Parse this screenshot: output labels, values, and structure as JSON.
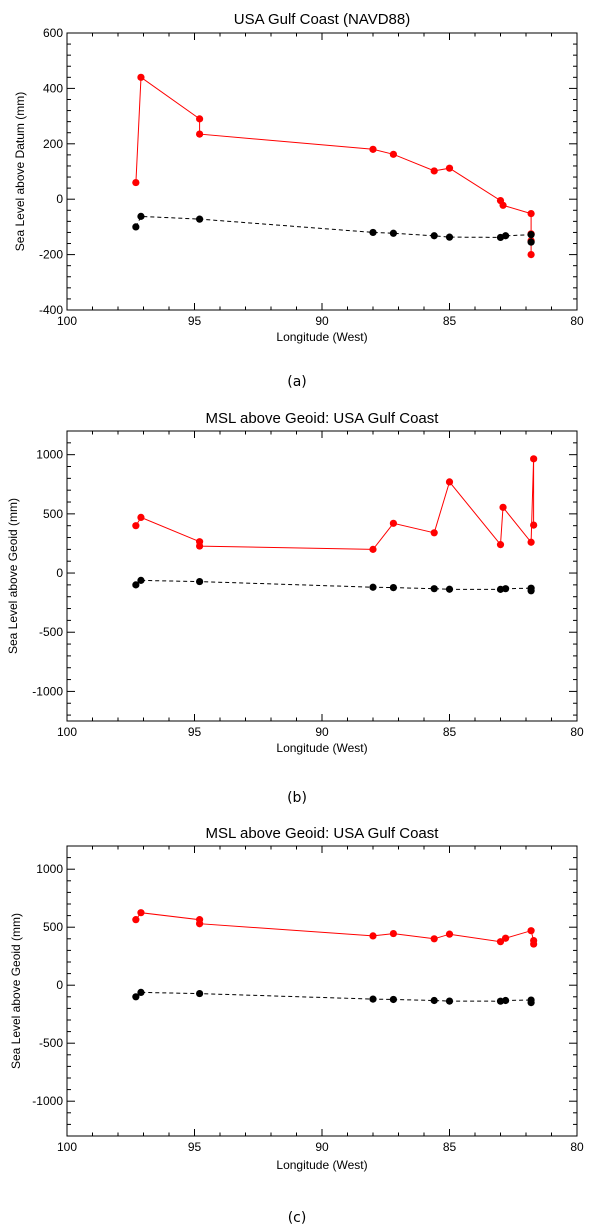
{
  "chart_data": [
    {
      "type": "line",
      "title": "USA Gulf Coast (NAVD88)",
      "xlabel": "Longitude (West)",
      "ylabel": "Sea Level above Datum (mm)",
      "caption": "(a)",
      "xlim": [
        100,
        80
      ],
      "ylim": [
        -400,
        600
      ],
      "xticks": [
        "100",
        "95",
        "90",
        "85",
        "80"
      ],
      "yticks": [
        "-400",
        "-200",
        "0",
        "200",
        "400",
        "600"
      ],
      "series": [
        {
          "color": "#ff0000",
          "style": "solid",
          "x": [
            97.3,
            97.1,
            94.8,
            94.8,
            88.0,
            87.2,
            85.6,
            85.0,
            83.0,
            82.9,
            81.8,
            81.8,
            81.8,
            81.8
          ],
          "y": [
            60,
            440,
            290,
            235,
            180,
            162,
            102,
            112,
            -5,
            -22,
            -52,
            -125,
            -200,
            -150
          ]
        },
        {
          "color": "#000000",
          "style": "dashed",
          "x": [
            97.3,
            97.1,
            94.8,
            88.0,
            87.2,
            85.6,
            85.0,
            83.0,
            82.8,
            81.8,
            81.8
          ],
          "y": [
            -100,
            -62,
            -72,
            -120,
            -123,
            -132,
            -137,
            -138,
            -132,
            -128,
            -155
          ]
        }
      ]
    },
    {
      "type": "line",
      "title": "MSL above Geoid: USA Gulf Coast",
      "xlabel": "Longitude (West)",
      "ylabel": "Sea Level above Geoid (mm)",
      "caption": "(b)",
      "xlim": [
        100,
        80
      ],
      "ylim": [
        -1250,
        1200
      ],
      "xticks": [
        "100",
        "95",
        "90",
        "85",
        "80"
      ],
      "yticks": [
        "-1000",
        "-500",
        "0",
        "500",
        "1000"
      ],
      "series": [
        {
          "color": "#ff0000",
          "style": "solid",
          "x": [
            97.3,
            97.1,
            94.8,
            94.8,
            88.0,
            87.2,
            85.6,
            85.0,
            83.0,
            82.9,
            81.8,
            81.7,
            81.7
          ],
          "y": [
            400,
            470,
            265,
            228,
            200,
            420,
            340,
            770,
            240,
            555,
            260,
            965,
            405
          ]
        },
        {
          "color": "#000000",
          "style": "dashed",
          "x": [
            97.3,
            97.1,
            94.8,
            88.0,
            87.2,
            85.6,
            85.0,
            83.0,
            82.8,
            81.8,
            81.8
          ],
          "y": [
            -100,
            -62,
            -72,
            -120,
            -123,
            -132,
            -137,
            -138,
            -132,
            -128,
            -150
          ]
        }
      ]
    },
    {
      "type": "line",
      "title": "MSL above Geoid: USA Gulf Coast",
      "xlabel": "Longitude (West)",
      "ylabel": "Sea Level above Geoid (mm)",
      "caption": "(c)",
      "xlim": [
        100,
        80
      ],
      "ylim": [
        -1300,
        1200
      ],
      "xticks": [
        "100",
        "95",
        "90",
        "85",
        "80"
      ],
      "yticks": [
        "-1000",
        "-500",
        "0",
        "500",
        "1000"
      ],
      "series": [
        {
          "color": "#ff0000",
          "style": "solid",
          "x": [
            97.3,
            97.1,
            94.8,
            94.8,
            88.0,
            87.2,
            85.6,
            85.0,
            83.0,
            82.8,
            81.8,
            81.7,
            81.7
          ],
          "y": [
            565,
            625,
            565,
            530,
            425,
            445,
            400,
            440,
            375,
            405,
            470,
            385,
            355
          ]
        },
        {
          "color": "#000000",
          "style": "dashed",
          "x": [
            97.3,
            97.1,
            94.8,
            88.0,
            87.2,
            85.6,
            85.0,
            83.0,
            82.8,
            81.8,
            81.8
          ],
          "y": [
            -100,
            -62,
            -72,
            -120,
            -123,
            -132,
            -137,
            -138,
            -132,
            -128,
            -150
          ]
        }
      ]
    }
  ]
}
